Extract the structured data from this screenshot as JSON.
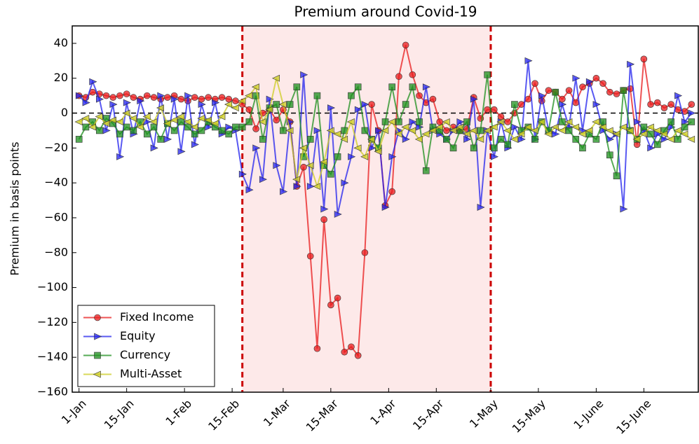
{
  "chart_data": {
    "type": "line",
    "title": "Premium around Covid-19",
    "y_label": "Premium in basis points",
    "x": [
      0,
      2,
      4,
      6,
      8,
      10,
      12,
      14,
      16,
      18,
      20,
      22,
      24,
      26,
      28,
      30,
      32,
      34,
      36,
      38,
      40,
      42,
      44,
      46,
      48,
      50,
      52,
      54,
      56,
      58,
      60,
      62,
      64,
      66,
      68,
      70,
      72,
      74,
      76,
      78,
      80,
      82,
      84,
      86,
      88,
      90,
      92,
      94,
      96,
      98,
      100,
      102,
      104,
      106,
      108,
      110,
      112,
      114,
      116,
      118,
      120,
      122,
      124,
      126,
      128,
      130,
      132,
      134,
      136,
      138,
      140,
      142,
      144,
      146,
      148,
      150,
      152,
      154,
      156,
      158,
      160,
      162,
      164,
      166,
      168,
      170,
      172,
      174,
      176,
      178,
      180
    ],
    "xlim": [
      -2,
      182
    ],
    "xticks": [
      {
        "value": 0,
        "label": "1-Jan"
      },
      {
        "value": 14,
        "label": "15-Jan"
      },
      {
        "value": 31,
        "label": "1-Feb"
      },
      {
        "value": 45,
        "label": "15-Feb"
      },
      {
        "value": 60,
        "label": "1-Mar"
      },
      {
        "value": 74,
        "label": "15-Mar"
      },
      {
        "value": 91,
        "label": "1-Apr"
      },
      {
        "value": 105,
        "label": "15-Apr"
      },
      {
        "value": 121,
        "label": "1-May"
      },
      {
        "value": 135,
        "label": "15-May"
      },
      {
        "value": 152,
        "label": "1-June"
      },
      {
        "value": 166,
        "label": "15-June"
      }
    ],
    "ylim": [
      -160,
      50
    ],
    "yticks": [
      {
        "value": -160,
        "label": "−160"
      },
      {
        "value": -140,
        "label": "−140"
      },
      {
        "value": -120,
        "label": "−120"
      },
      {
        "value": -100,
        "label": "−100"
      },
      {
        "value": -80,
        "label": "−80"
      },
      {
        "value": -60,
        "label": "−60"
      },
      {
        "value": -40,
        "label": "−40"
      },
      {
        "value": -20,
        "label": "−20"
      },
      0,
      20,
      40
    ],
    "highlight": {
      "xlim": [
        48,
        121
      ],
      "color": "#fde9e9",
      "line_color": "#cc0000"
    },
    "hline": 0,
    "legend": "lower left",
    "series": [
      {
        "name": "Fixed Income",
        "color": "#e8191b",
        "marker": "circle",
        "values": [
          10,
          9,
          12,
          11,
          10,
          9,
          10,
          11,
          9,
          8,
          10,
          9,
          8,
          9,
          10,
          8,
          7,
          9,
          8,
          9,
          8,
          9,
          8,
          7,
          5,
          2,
          -9,
          0,
          2,
          -4,
          2,
          -5,
          -42,
          -31,
          -82,
          -135,
          -61,
          -110,
          -106,
          -137,
          -134,
          -139,
          -80,
          5,
          -10,
          -53,
          -45,
          21,
          39,
          22,
          10,
          6,
          8,
          -5,
          -10,
          -8,
          -10,
          -9,
          9,
          -3,
          2,
          2,
          -2,
          -5,
          0,
          5,
          8,
          17,
          7,
          13,
          12,
          8,
          13,
          6,
          15,
          17,
          20,
          17,
          12,
          11,
          13,
          14,
          -18,
          31,
          5,
          6,
          3,
          5,
          2,
          1,
          5
        ]
      },
      {
        "name": "Equity",
        "color": "#2222ee",
        "marker": "triangle-right",
        "values": [
          10,
          6,
          18,
          8,
          -10,
          5,
          -25,
          6,
          -12,
          7,
          -5,
          -20,
          10,
          -15,
          8,
          -22,
          10,
          -18,
          5,
          -8,
          6,
          -12,
          -8,
          -10,
          -35,
          -44,
          -20,
          -38,
          8,
          -30,
          -45,
          -5,
          -42,
          22,
          -42,
          -10,
          -55,
          3,
          -58,
          -40,
          -25,
          2,
          5,
          -20,
          -10,
          -54,
          -25,
          -10,
          -15,
          -5,
          -8,
          15,
          -10,
          -12,
          -15,
          -10,
          -5,
          -15,
          8,
          -54,
          -10,
          -25,
          -5,
          -20,
          -8,
          -15,
          30,
          -15,
          10,
          -10,
          -12,
          5,
          -8,
          20,
          -10,
          18,
          5,
          -10,
          -15,
          -12,
          -55,
          28,
          -5,
          -10,
          -20,
          -12,
          -15,
          -8,
          10,
          -5,
          0
        ]
      },
      {
        "name": "Currency",
        "color": "#1e8f1e",
        "marker": "square",
        "values": [
          -15,
          -8,
          -5,
          -10,
          -3,
          -6,
          -12,
          -8,
          -10,
          -5,
          -12,
          -8,
          -15,
          -6,
          -10,
          -5,
          -8,
          -12,
          -10,
          -5,
          -8,
          -10,
          -12,
          -8,
          -8,
          -5,
          10,
          -15,
          3,
          5,
          -10,
          5,
          15,
          -25,
          -15,
          10,
          -30,
          -35,
          -25,
          -10,
          10,
          15,
          -10,
          -15,
          -20,
          -5,
          15,
          -5,
          5,
          15,
          -5,
          -33,
          -8,
          -10,
          -15,
          -20,
          -10,
          -5,
          -20,
          -10,
          22,
          -20,
          -15,
          -18,
          5,
          -10,
          -8,
          -15,
          -5,
          -10,
          12,
          -5,
          -10,
          -15,
          -20,
          -12,
          -15,
          -5,
          -24,
          -36,
          13,
          -10,
          -15,
          -8,
          -12,
          -18,
          -10,
          -5,
          -15,
          -8,
          -5
        ]
      },
      {
        "name": "Multi-Asset",
        "color": "#cccc22",
        "marker": "triangle-left",
        "values": [
          -5,
          -3,
          -8,
          -2,
          -6,
          -4,
          -5,
          0,
          -3,
          -8,
          -2,
          -5,
          3,
          -6,
          -4,
          -2,
          -5,
          -8,
          -3,
          -4,
          -6,
          -2,
          5,
          3,
          7,
          10,
          15,
          -5,
          2,
          20,
          5,
          -10,
          -38,
          -20,
          -30,
          -42,
          -28,
          -10,
          -12,
          -15,
          -5,
          -20,
          -25,
          -15,
          -22,
          -10,
          -5,
          -12,
          -8,
          -10,
          -15,
          -12,
          -10,
          -8,
          -5,
          -10,
          -8,
          -12,
          -10,
          -15,
          -10,
          -8,
          -5,
          -10,
          -15,
          -12,
          -8,
          -10,
          -5,
          -12,
          -8,
          -10,
          -5,
          -8,
          -12,
          -10,
          -5,
          -8,
          -10,
          -12,
          -8,
          -10,
          -15,
          -12,
          -8,
          -10,
          -12,
          -15,
          -10,
          -12,
          -15
        ]
      }
    ]
  }
}
